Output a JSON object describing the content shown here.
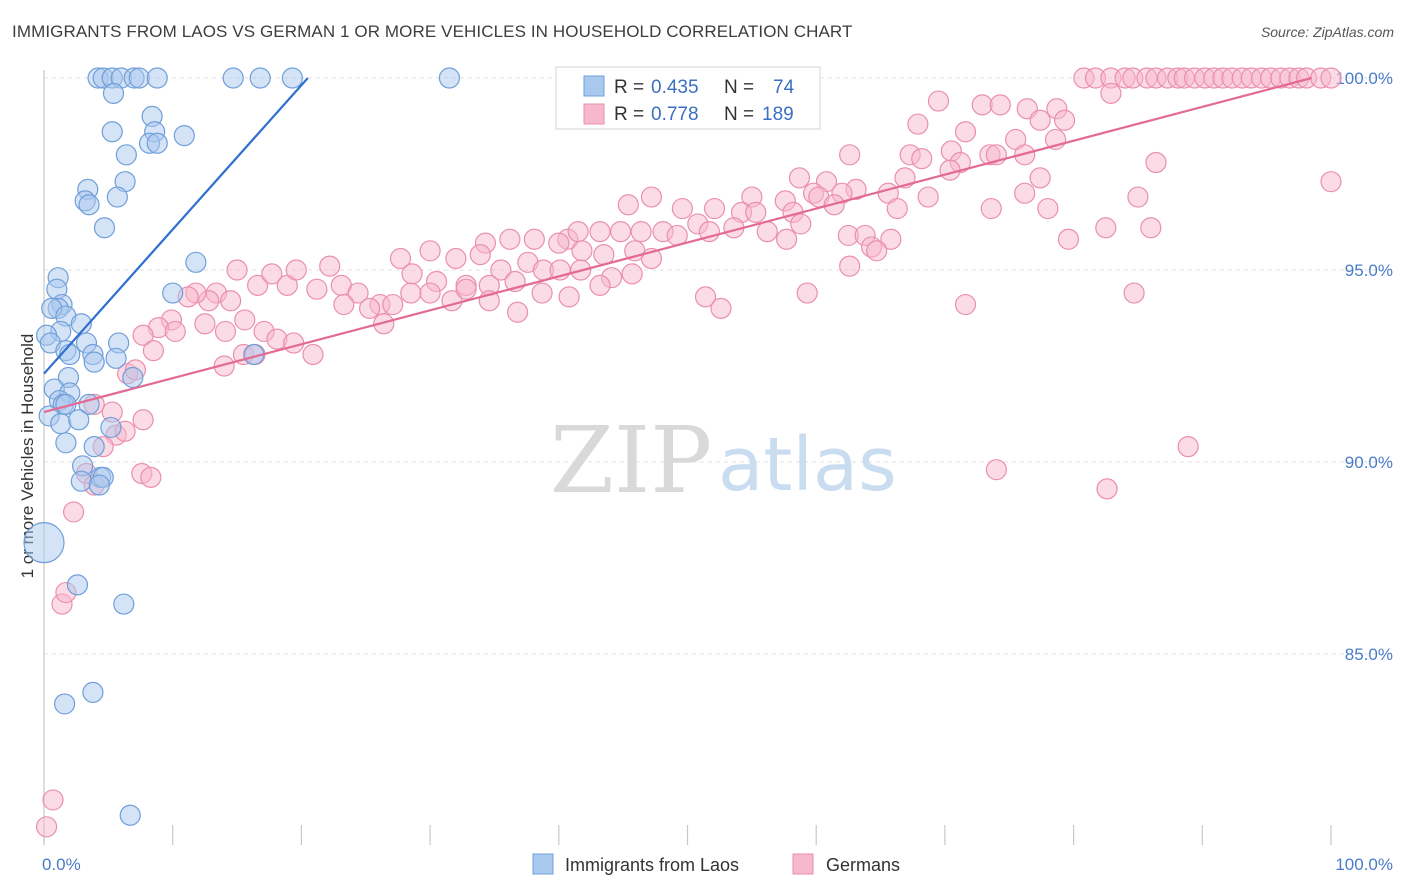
{
  "title": "IMMIGRANTS FROM LAOS VS GERMAN 1 OR MORE VEHICLES IN HOUSEHOLD CORRELATION CHART",
  "source": "Source: ZipAtlas.com",
  "watermark": {
    "zip": "ZIP",
    "atlas": "atlas"
  },
  "colors": {
    "blue_fill": "#a9c8ee",
    "blue_stroke": "#6f9fd9",
    "blue_line": "#2f6fd0",
    "pink_fill": "#f7b7cc",
    "pink_stroke": "#ea8fae",
    "pink_line": "#e26a94",
    "tick_text": "#4a7cc7",
    "grid": "#e0e0e0"
  },
  "legend": {
    "rows": [
      {
        "r_label": "R =",
        "r_value": "0.435",
        "n_label": "N =",
        "n_value": "74"
      },
      {
        "r_label": "R =",
        "r_value": "0.778",
        "n_label": "N =",
        "n_value": "189"
      }
    ]
  },
  "bottom_legend": {
    "series1": "Immigrants from Laos",
    "series2": "Germans"
  },
  "chart_data": {
    "type": "scatter",
    "title": "IMMIGRANTS FROM LAOS VS GERMAN 1 OR MORE VEHICLES IN HOUSEHOLD CORRELATION CHART",
    "xlabel": "",
    "ylabel": "1 or more Vehicles in Household",
    "xlim": [
      0,
      100
    ],
    "ylim": [
      80.2,
      100.6
    ],
    "x_tick_labels": [
      "0.0%",
      "100.0%"
    ],
    "y_ticks": [
      85,
      90,
      95,
      100
    ],
    "y_tick_labels": [
      "85.0%",
      "90.0%",
      "95.0%",
      "100.0%"
    ],
    "grid": true,
    "legend_position": "top-center",
    "series": [
      {
        "name": "Immigrants from Laos",
        "R": 0.435,
        "N": 74,
        "trend": {
          "x": [
            0.0,
            20.5
          ],
          "y": [
            92.3,
            100.0
          ]
        },
        "points": [
          [
            0.0,
            87.9,
            "big"
          ],
          [
            4.2,
            100.0
          ],
          [
            4.6,
            100.0
          ],
          [
            5.3,
            100.0
          ],
          [
            6.0,
            100.0
          ],
          [
            7.0,
            100.0
          ],
          [
            7.4,
            100.0
          ],
          [
            8.8,
            100.0
          ],
          [
            14.7,
            100.0
          ],
          [
            16.8,
            100.0
          ],
          [
            19.3,
            100.0
          ],
          [
            31.5,
            100.0
          ],
          [
            5.4,
            99.6
          ],
          [
            8.4,
            99.0
          ],
          [
            8.6,
            98.6
          ],
          [
            5.3,
            98.6
          ],
          [
            8.2,
            98.3
          ],
          [
            8.8,
            98.3
          ],
          [
            10.9,
            98.5
          ],
          [
            6.4,
            98.0
          ],
          [
            6.3,
            97.3
          ],
          [
            3.4,
            97.1
          ],
          [
            3.2,
            96.8
          ],
          [
            5.7,
            96.9
          ],
          [
            3.5,
            96.7
          ],
          [
            4.7,
            96.1
          ],
          [
            11.8,
            95.2
          ],
          [
            1.1,
            94.8
          ],
          [
            1.0,
            94.5
          ],
          [
            10.0,
            94.4
          ],
          [
            1.4,
            94.1
          ],
          [
            1.1,
            94.0
          ],
          [
            0.6,
            94.0
          ],
          [
            1.7,
            93.8
          ],
          [
            2.9,
            93.6
          ],
          [
            1.3,
            93.4
          ],
          [
            0.2,
            93.3
          ],
          [
            0.5,
            93.1
          ],
          [
            3.3,
            93.1
          ],
          [
            5.8,
            93.1
          ],
          [
            1.7,
            92.9
          ],
          [
            2.0,
            92.8
          ],
          [
            3.8,
            92.8
          ],
          [
            5.6,
            92.7
          ],
          [
            16.3,
            92.8
          ],
          [
            3.9,
            92.6
          ],
          [
            1.9,
            92.2
          ],
          [
            6.9,
            92.2
          ],
          [
            0.8,
            91.9
          ],
          [
            2.0,
            91.8
          ],
          [
            1.2,
            91.6
          ],
          [
            1.5,
            91.5
          ],
          [
            1.7,
            91.5
          ],
          [
            3.5,
            91.5
          ],
          [
            0.4,
            91.2
          ],
          [
            1.3,
            91.0
          ],
          [
            2.7,
            91.1
          ],
          [
            5.2,
            90.9
          ],
          [
            1.7,
            90.5
          ],
          [
            3.9,
            90.4
          ],
          [
            3.0,
            89.9
          ],
          [
            4.4,
            89.6
          ],
          [
            4.6,
            89.6
          ],
          [
            2.9,
            89.5
          ],
          [
            4.3,
            89.4
          ],
          [
            2.6,
            86.8
          ],
          [
            6.2,
            86.3
          ],
          [
            3.8,
            84.0
          ],
          [
            1.6,
            83.7
          ],
          [
            6.7,
            80.8
          ]
        ]
      },
      {
        "name": "Germans",
        "R": 0.778,
        "N": 189,
        "trend": {
          "x": [
            0.0,
            98.5
          ],
          "y": [
            91.3,
            100.0
          ]
        },
        "points": [
          [
            80.8,
            100.0
          ],
          [
            81.7,
            100.0
          ],
          [
            82.9,
            100.0
          ],
          [
            84.0,
            100.0
          ],
          [
            84.6,
            100.0
          ],
          [
            85.7,
            100.0
          ],
          [
            86.4,
            100.0
          ],
          [
            87.3,
            100.0
          ],
          [
            88.1,
            100.0
          ],
          [
            88.6,
            100.0
          ],
          [
            89.4,
            100.0
          ],
          [
            90.2,
            100.0
          ],
          [
            90.9,
            100.0
          ],
          [
            91.6,
            100.0
          ],
          [
            92.3,
            100.0
          ],
          [
            93.1,
            100.0
          ],
          [
            93.8,
            100.0
          ],
          [
            94.6,
            100.0
          ],
          [
            95.3,
            100.0
          ],
          [
            96.1,
            100.0
          ],
          [
            96.8,
            100.0
          ],
          [
            97.5,
            100.0
          ],
          [
            98.1,
            100.0
          ],
          [
            99.2,
            100.0
          ],
          [
            100.0,
            100.0
          ],
          [
            82.9,
            99.6
          ],
          [
            69.5,
            99.4
          ],
          [
            72.9,
            99.3
          ],
          [
            74.3,
            99.3
          ],
          [
            76.4,
            99.2
          ],
          [
            78.7,
            99.2
          ],
          [
            79.3,
            98.9
          ],
          [
            77.4,
            98.9
          ],
          [
            67.9,
            98.8
          ],
          [
            71.6,
            98.6
          ],
          [
            75.5,
            98.4
          ],
          [
            78.6,
            98.4
          ],
          [
            70.5,
            98.1
          ],
          [
            73.5,
            98.0
          ],
          [
            76.2,
            98.0
          ],
          [
            74.0,
            98.0
          ],
          [
            62.6,
            98.0
          ],
          [
            67.3,
            98.0
          ],
          [
            68.2,
            97.9
          ],
          [
            71.2,
            97.8
          ],
          [
            86.4,
            97.8
          ],
          [
            58.7,
            97.4
          ],
          [
            60.8,
            97.3
          ],
          [
            66.9,
            97.4
          ],
          [
            70.4,
            97.6
          ],
          [
            77.4,
            97.4
          ],
          [
            100.0,
            97.3
          ],
          [
            63.1,
            97.1
          ],
          [
            62.0,
            97.0
          ],
          [
            59.8,
            97.0
          ],
          [
            65.6,
            97.0
          ],
          [
            68.7,
            96.9
          ],
          [
            76.2,
            97.0
          ],
          [
            47.2,
            96.9
          ],
          [
            55.0,
            96.9
          ],
          [
            57.6,
            96.8
          ],
          [
            60.2,
            96.9
          ],
          [
            61.4,
            96.7
          ],
          [
            66.3,
            96.6
          ],
          [
            73.6,
            96.6
          ],
          [
            78.0,
            96.6
          ],
          [
            85.0,
            96.9
          ],
          [
            45.4,
            96.7
          ],
          [
            49.6,
            96.6
          ],
          [
            52.1,
            96.6
          ],
          [
            54.2,
            96.5
          ],
          [
            55.3,
            96.5
          ],
          [
            58.2,
            96.5
          ],
          [
            50.8,
            96.2
          ],
          [
            51.7,
            96.0
          ],
          [
            53.6,
            96.1
          ],
          [
            56.2,
            96.0
          ],
          [
            57.7,
            95.8
          ],
          [
            58.8,
            96.2
          ],
          [
            62.5,
            95.9
          ],
          [
            63.8,
            95.9
          ],
          [
            64.3,
            95.6
          ],
          [
            65.8,
            95.8
          ],
          [
            79.6,
            95.8
          ],
          [
            82.5,
            96.1
          ],
          [
            86.0,
            96.1
          ],
          [
            40.7,
            95.8
          ],
          [
            41.5,
            96.0
          ],
          [
            43.2,
            96.0
          ],
          [
            44.8,
            96.0
          ],
          [
            46.4,
            96.0
          ],
          [
            48.1,
            96.0
          ],
          [
            49.2,
            95.9
          ],
          [
            34.3,
            95.7
          ],
          [
            36.2,
            95.8
          ],
          [
            38.1,
            95.8
          ],
          [
            40.0,
            95.7
          ],
          [
            41.8,
            95.5
          ],
          [
            43.5,
            95.4
          ],
          [
            45.9,
            95.5
          ],
          [
            47.2,
            95.3
          ],
          [
            64.7,
            95.5
          ],
          [
            30.0,
            95.5
          ],
          [
            32.0,
            95.3
          ],
          [
            33.9,
            95.4
          ],
          [
            35.5,
            95.0
          ],
          [
            37.6,
            95.2
          ],
          [
            38.8,
            95.0
          ],
          [
            40.1,
            95.0
          ],
          [
            41.7,
            95.0
          ],
          [
            44.1,
            94.8
          ],
          [
            45.7,
            94.9
          ],
          [
            62.6,
            95.1
          ],
          [
            27.7,
            95.3
          ],
          [
            28.6,
            94.9
          ],
          [
            30.5,
            94.7
          ],
          [
            32.8,
            94.6
          ],
          [
            34.6,
            94.6
          ],
          [
            36.6,
            94.7
          ],
          [
            38.7,
            94.4
          ],
          [
            40.8,
            94.3
          ],
          [
            43.2,
            94.6
          ],
          [
            22.2,
            95.1
          ],
          [
            23.1,
            94.6
          ],
          [
            24.4,
            94.4
          ],
          [
            26.1,
            94.1
          ],
          [
            27.1,
            94.1
          ],
          [
            28.5,
            94.4
          ],
          [
            30.0,
            94.4
          ],
          [
            31.7,
            94.2
          ],
          [
            32.8,
            94.5
          ],
          [
            34.6,
            94.2
          ],
          [
            36.8,
            93.9
          ],
          [
            51.4,
            94.3
          ],
          [
            52.6,
            94.0
          ],
          [
            59.3,
            94.4
          ],
          [
            71.6,
            94.1
          ],
          [
            84.7,
            94.4
          ],
          [
            15.0,
            95.0
          ],
          [
            16.6,
            94.6
          ],
          [
            17.7,
            94.9
          ],
          [
            18.9,
            94.6
          ],
          [
            19.6,
            95.0
          ],
          [
            21.2,
            94.5
          ],
          [
            23.3,
            94.1
          ],
          [
            25.3,
            94.0
          ],
          [
            26.4,
            93.6
          ],
          [
            13.4,
            94.4
          ],
          [
            14.5,
            94.2
          ],
          [
            12.8,
            94.2
          ],
          [
            11.8,
            94.4
          ],
          [
            11.2,
            94.3
          ],
          [
            9.9,
            93.7
          ],
          [
            8.9,
            93.5
          ],
          [
            10.2,
            93.4
          ],
          [
            12.5,
            93.6
          ],
          [
            14.1,
            93.4
          ],
          [
            15.6,
            93.7
          ],
          [
            17.1,
            93.4
          ],
          [
            18.1,
            93.2
          ],
          [
            19.4,
            93.1
          ],
          [
            20.9,
            92.8
          ],
          [
            7.7,
            93.3
          ],
          [
            8.5,
            92.9
          ],
          [
            15.5,
            92.8
          ],
          [
            16.4,
            92.8
          ],
          [
            14.0,
            92.5
          ],
          [
            6.5,
            92.3
          ],
          [
            7.1,
            92.4
          ],
          [
            3.9,
            91.5
          ],
          [
            5.3,
            91.3
          ],
          [
            7.7,
            91.1
          ],
          [
            5.6,
            90.7
          ],
          [
            6.3,
            90.8
          ],
          [
            4.6,
            90.4
          ],
          [
            3.3,
            89.7
          ],
          [
            7.6,
            89.7
          ],
          [
            8.3,
            89.6
          ],
          [
            3.9,
            89.4
          ],
          [
            2.3,
            88.7
          ],
          [
            74.0,
            89.8
          ],
          [
            82.6,
            89.3
          ],
          [
            88.9,
            90.4
          ],
          [
            1.4,
            86.3
          ],
          [
            1.7,
            86.6
          ],
          [
            0.7,
            81.2
          ],
          [
            0.2,
            80.5
          ]
        ]
      }
    ]
  }
}
